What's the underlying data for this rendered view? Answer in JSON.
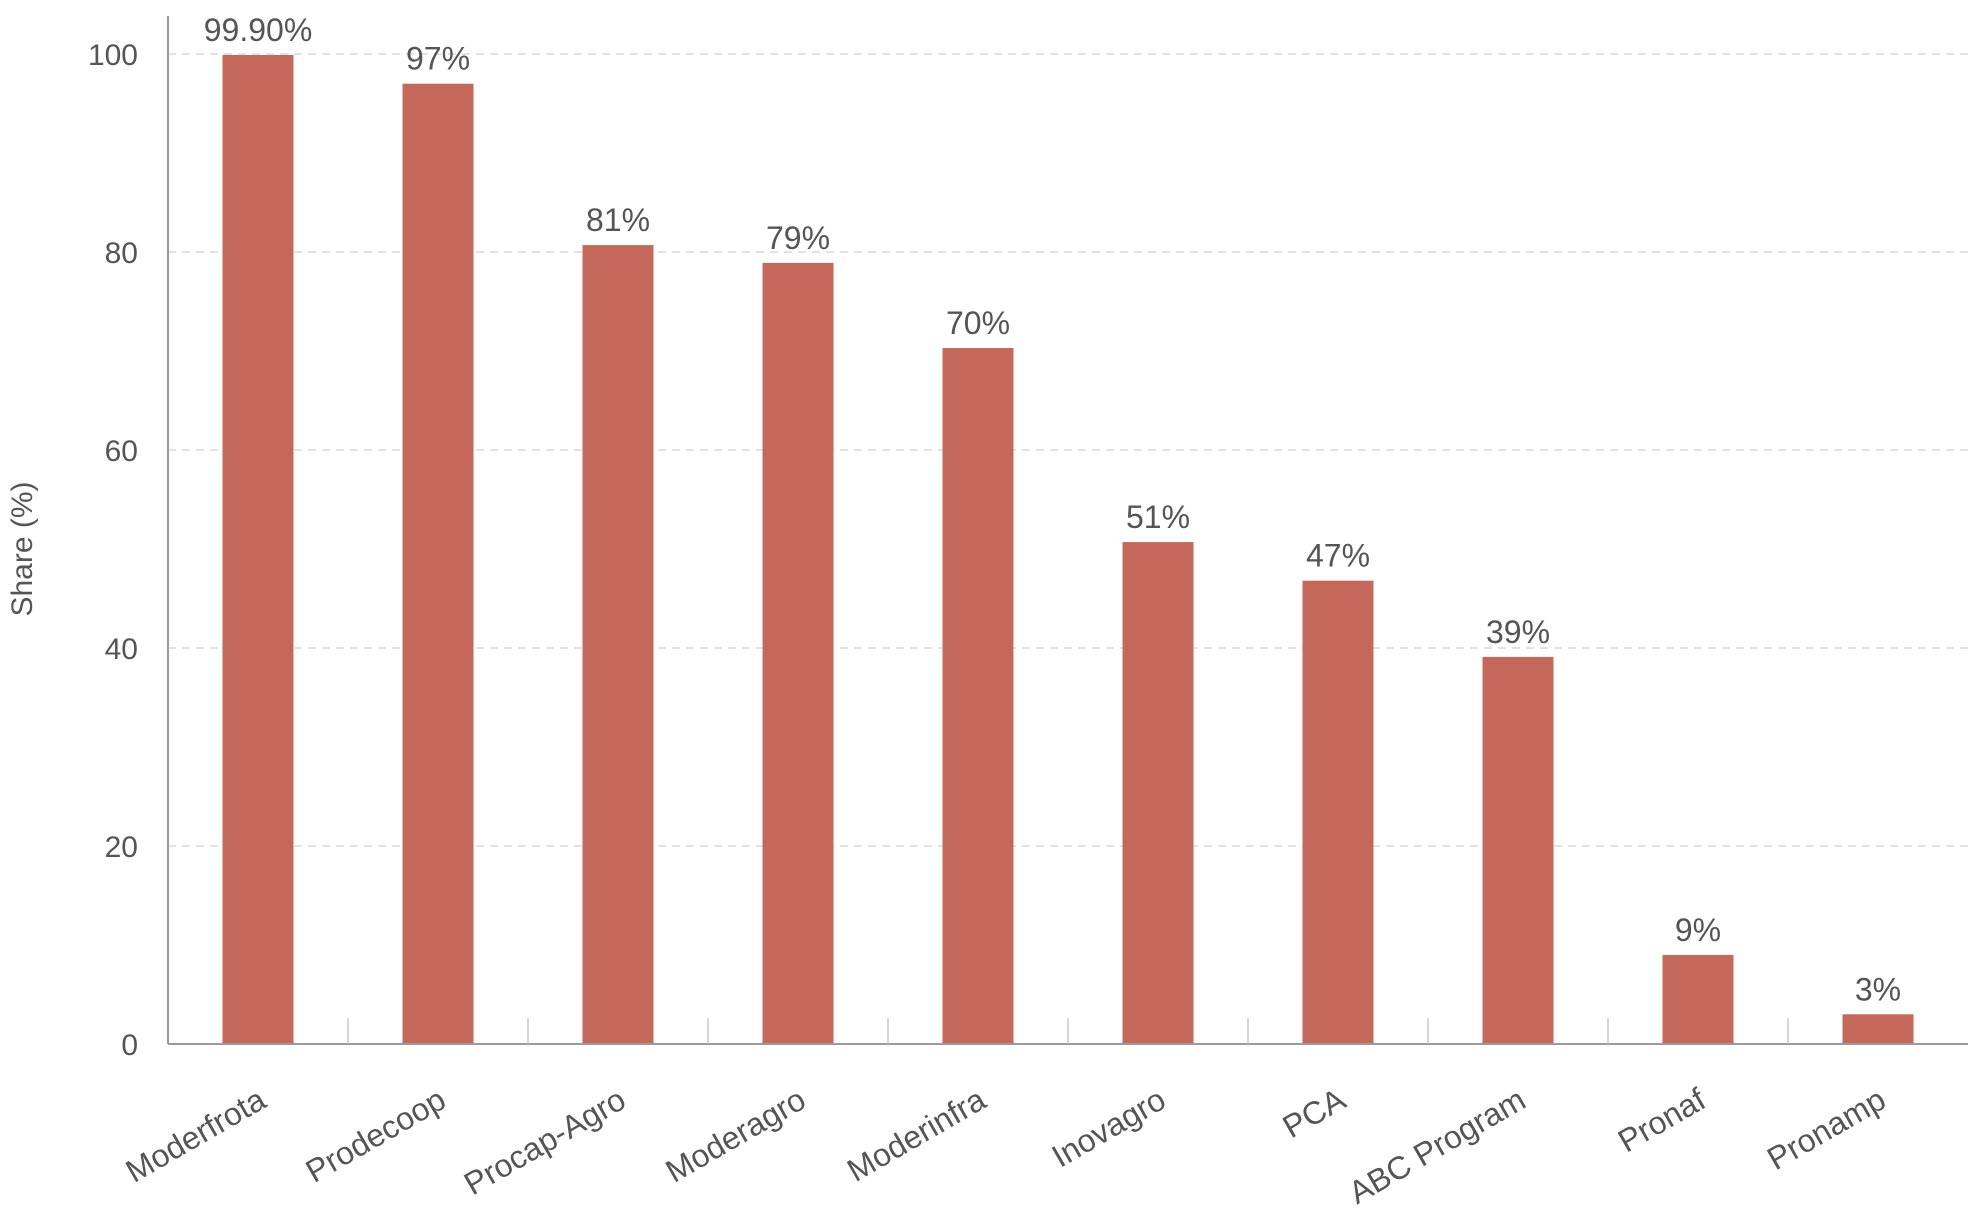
{
  "chart_data": {
    "type": "bar",
    "categories": [
      "Moderfrota",
      "Prodecoop",
      "Procap-Agro",
      "Moderagro",
      "Moderinfra",
      "Inovagro",
      "PCA",
      "ABC Program",
      "Pronaf",
      "Pronamp"
    ],
    "values": [
      99.9,
      97,
      80.7,
      78.9,
      70.3,
      50.7,
      46.8,
      39.1,
      9,
      3
    ],
    "data_labels": [
      "99.90%",
      "97%",
      "81%",
      "79%",
      "70%",
      "51%",
      "47%",
      "39%",
      "9%",
      "3%"
    ],
    "title": "",
    "xlabel": "",
    "ylabel": "Share (%)",
    "ylim": [
      0,
      100
    ],
    "yticks": [
      0,
      20,
      40,
      60,
      80,
      100
    ],
    "ytick_labels": [
      "0",
      "20",
      "40",
      "60",
      "80",
      "100"
    ],
    "grid": "horizontal-dashed",
    "legend": "none",
    "bar_color": "#c3685a"
  }
}
